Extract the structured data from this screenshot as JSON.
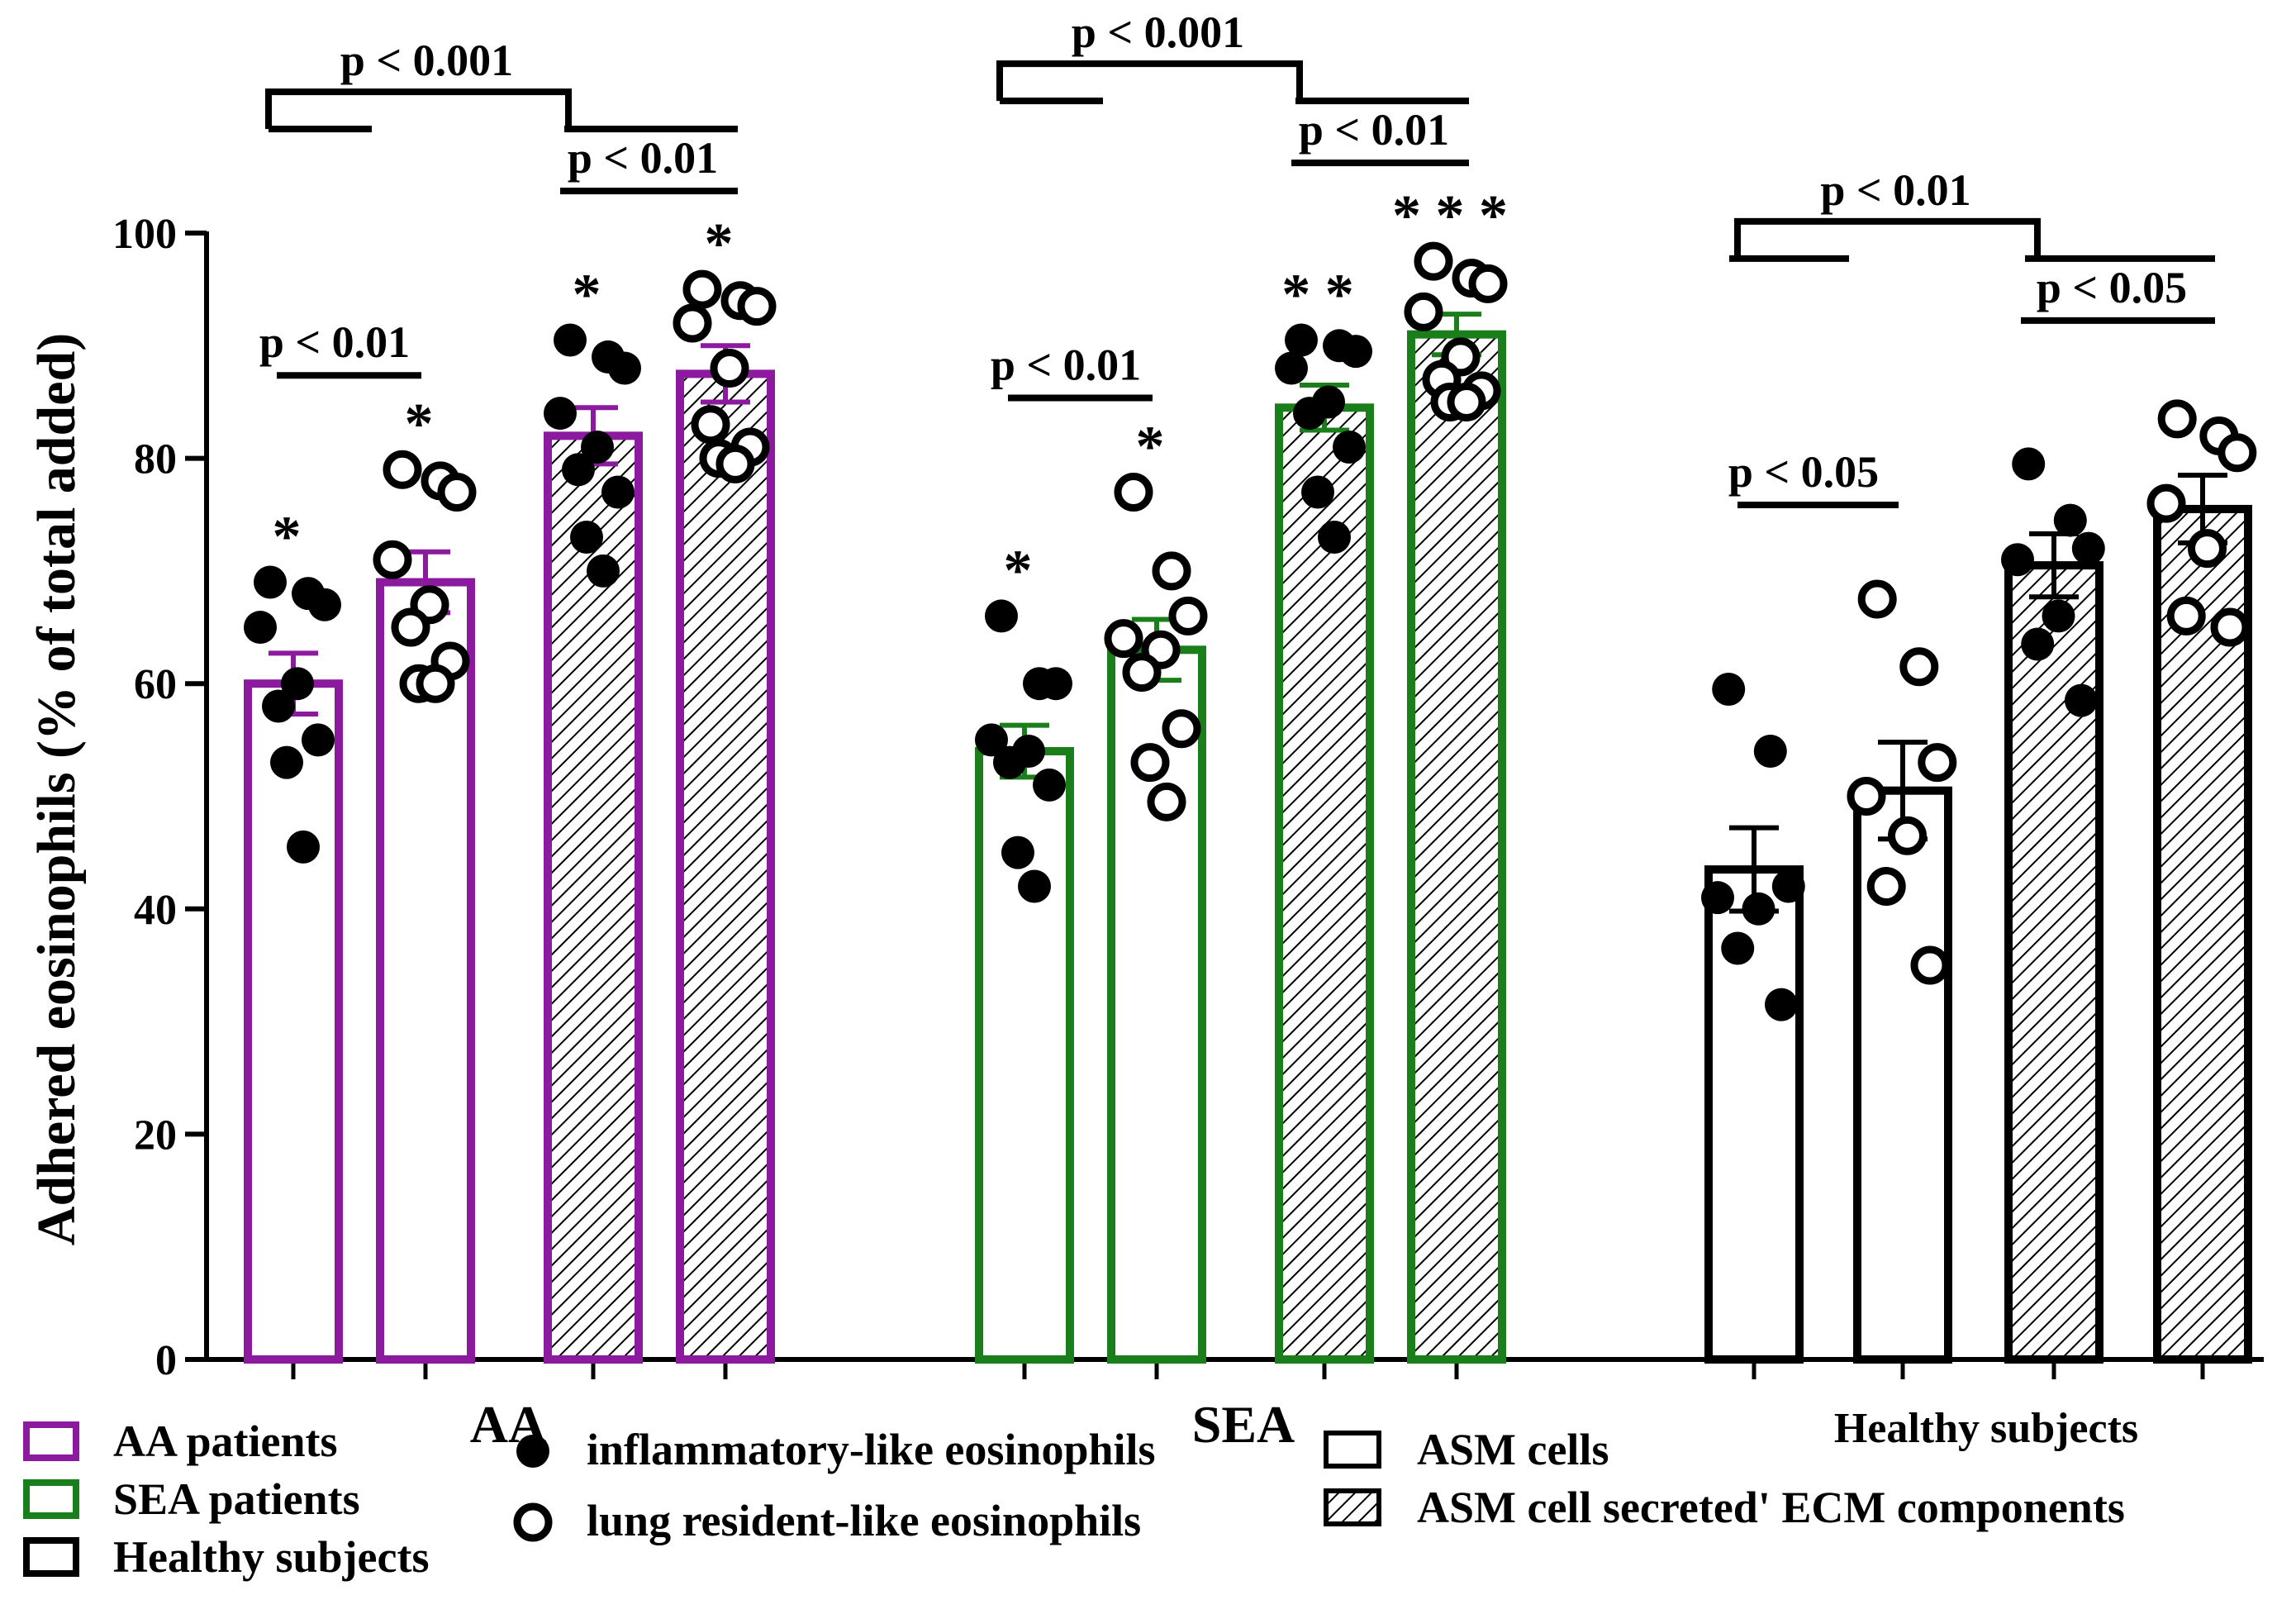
{
  "chart_data": {
    "type": "bar",
    "title": "",
    "ylabel": "Adhered eosinophils (% of total added)",
    "xlabel": "",
    "ylim": [
      0,
      100
    ],
    "yticks": [
      0,
      20,
      40,
      60,
      80,
      100
    ],
    "group_labels": [
      "AA",
      "SEA",
      "Healthy subjects"
    ],
    "groups": [
      {
        "name": "AA",
        "color": "#8B1A9E",
        "bars": [
          {
            "eos": "inflammatory-like",
            "substrate": "ASM cells",
            "mean": 60,
            "sem": 2.7,
            "star": "*",
            "points": [
              69,
              68,
              67,
              65,
              60,
              58,
              55,
              53,
              45.5
            ]
          },
          {
            "eos": "lung resident-like",
            "substrate": "ASM cells",
            "mean": 69,
            "sem": 2.7,
            "star": "*",
            "points": [
              79,
              78,
              77,
              71,
              67,
              65,
              62,
              60,
              60
            ]
          },
          {
            "eos": "inflammatory-like",
            "substrate": "ASM cell secreted' ECM components",
            "mean": 82,
            "sem": 2.5,
            "star": "*",
            "points": [
              90.5,
              89,
              88,
              84,
              81,
              79,
              77,
              73,
              70
            ]
          },
          {
            "eos": "lung resident-like",
            "substrate": "ASM cell secreted' ECM components",
            "mean": 87.5,
            "sem": 2.5,
            "star": "*",
            "points": [
              95,
              94,
              93.5,
              92,
              88,
              83,
              81,
              80,
              79.5
            ]
          }
        ],
        "brackets": [
          {
            "label": "p < 0.01",
            "from": 0,
            "to": 1,
            "level": "low"
          },
          {
            "label": "p < 0.01",
            "from": 2,
            "to": 3,
            "level": "mid"
          },
          {
            "label": "p < 0.001",
            "from": "pair01",
            "to": "pair23",
            "level": "top"
          }
        ]
      },
      {
        "name": "SEA",
        "color": "#1A7F1A",
        "bars": [
          {
            "eos": "inflammatory-like",
            "substrate": "ASM cells",
            "mean": 54,
            "sem": 2.3,
            "star": "*",
            "points": [
              66,
              60,
              60,
              55,
              54,
              53,
              51,
              45,
              42
            ]
          },
          {
            "eos": "lung resident-like",
            "substrate": "ASM cells",
            "mean": 63,
            "sem": 2.7,
            "star": "*",
            "points": [
              77,
              70,
              66,
              64,
              63,
              61,
              56,
              53,
              49.5
            ]
          },
          {
            "eos": "inflammatory-like",
            "substrate": "ASM cell secreted' ECM components",
            "mean": 84.5,
            "sem": 2.0,
            "star": "**",
            "points": [
              90.5,
              90,
              89.5,
              88,
              85,
              84,
              81,
              77,
              73
            ]
          },
          {
            "eos": "lung resident-like",
            "substrate": "ASM cell secreted' ECM components",
            "mean": 91,
            "sem": 1.8,
            "star": "***",
            "points": [
              97.5,
              96,
              95.5,
              93,
              89,
              87,
              86,
              85,
              85
            ]
          }
        ],
        "brackets": [
          {
            "label": "p < 0.01",
            "from": 0,
            "to": 1,
            "level": "low"
          },
          {
            "label": "p < 0.01",
            "from": 2,
            "to": 3,
            "level": "mid"
          },
          {
            "label": "p < 0.001",
            "from": "pair01",
            "to": "pair23",
            "level": "top"
          }
        ]
      },
      {
        "name": "Healthy subjects",
        "color": "#000000",
        "bars": [
          {
            "eos": "inflammatory-like",
            "substrate": "ASM cells",
            "mean": 43.5,
            "sem": 3.7,
            "star": "",
            "points": [
              59.5,
              54,
              42,
              41,
              40,
              36.5,
              31.5
            ]
          },
          {
            "eos": "lung resident-like",
            "substrate": "ASM cells",
            "mean": 50.5,
            "sem": 4.3,
            "star": "",
            "points": [
              67.5,
              61.5,
              53,
              50,
              46.5,
              42,
              35
            ]
          },
          {
            "eos": "inflammatory-like",
            "substrate": "ASM cell secreted' ECM components",
            "mean": 70.5,
            "sem": 2.8,
            "star": "",
            "points": [
              79.5,
              74.5,
              72,
              71,
              66,
              63.5,
              58.5
            ]
          },
          {
            "eos": "lung resident-like",
            "substrate": "ASM cell secreted' ECM components",
            "mean": 75.5,
            "sem": 3.0,
            "star": "",
            "points": [
              83.5,
              82,
              80.5,
              76,
              72,
              66,
              65
            ]
          }
        ],
        "brackets": [
          {
            "label": "p < 0.05",
            "from": 0,
            "to": 1,
            "level": "low"
          },
          {
            "label": "p < 0.05",
            "from": 2,
            "to": 3,
            "level": "mid"
          },
          {
            "label": "p < 0.01",
            "from": "pair01",
            "to": "pair23",
            "level": "top"
          }
        ]
      }
    ],
    "legend": {
      "position": "bottom",
      "groups": [
        {
          "label": "AA patients",
          "color": "#8B1A9E"
        },
        {
          "label": "SEA patients",
          "color": "#1A7F1A"
        },
        {
          "label": "Healthy subjects",
          "color": "#000000"
        }
      ],
      "markers": [
        {
          "label": "inflammatory-like eosinophils",
          "style": "filled-circle"
        },
        {
          "label": "lung resident-like eosinophils",
          "style": "open-circle"
        }
      ],
      "fills": [
        {
          "label": "ASM cells",
          "style": "empty"
        },
        {
          "label": "ASM cell secreted' ECM components",
          "style": "hatched"
        }
      ]
    }
  }
}
